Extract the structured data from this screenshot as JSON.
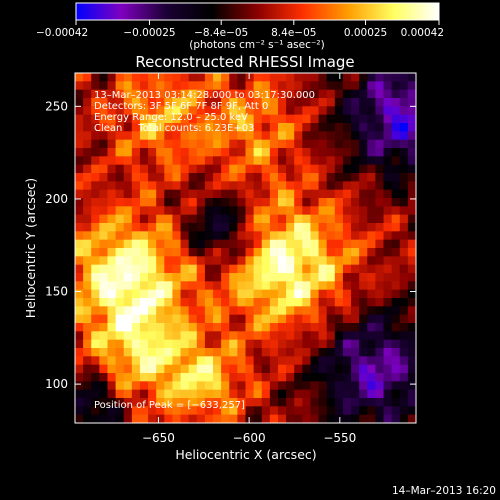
{
  "chart_data": {
    "type": "heatmap",
    "title": "Reconstructed RHESSI Image",
    "xlabel": "Heliocentric X (arcsec)",
    "ylabel": "Heliocentric Y (arcsec)",
    "xlim": [
      -696,
      -508
    ],
    "ylim": [
      79,
      268
    ],
    "x_ticks": [
      {
        "value": -650,
        "label": "−650"
      },
      {
        "value": -600,
        "label": "−600"
      },
      {
        "value": -550,
        "label": "−550"
      }
    ],
    "y_ticks": [
      {
        "value": 100,
        "label": "100"
      },
      {
        "value": 150,
        "label": "150"
      },
      {
        "value": 200,
        "label": "200"
      },
      {
        "value": 250,
        "label": "250"
      }
    ],
    "colorbar": {
      "min": -0.00042,
      "max": 0.00042,
      "tick_values": [
        -0.00042,
        -0.00025,
        -8.4e-05,
        8.4e-05,
        0.00025,
        0.00042
      ],
      "tick_labels": [
        "−0.00042",
        "−0.00025",
        "−8.4e−05",
        "8.4e−05",
        "0.00025",
        "0.00042"
      ],
      "unit_label": "(photons cm⁻² s⁻¹ asec⁻²)",
      "colormap_stops": [
        "#0000ff",
        "#7f00bf",
        "#1a0033",
        "#000000",
        "#8b0000",
        "#ff3000",
        "#ff9d00",
        "#ffff60",
        "#ffffff"
      ]
    },
    "annotations": {
      "time_range": "13–Mar–2013 03:14:28.000 to 03:17:30.000",
      "detectors": "Detectors: 3F 5F 6F 7F 8F 9F, Att 0",
      "energy_range": "Energy Range: 12.0 – 25.0 keV",
      "method_counts": "Clean     Total counts: 6.23E+03",
      "peak_position": "Position of Peak = [−633,257]"
    },
    "grid": false
  },
  "footer": {
    "timestamp": "14–Mar–2013 16:20"
  }
}
